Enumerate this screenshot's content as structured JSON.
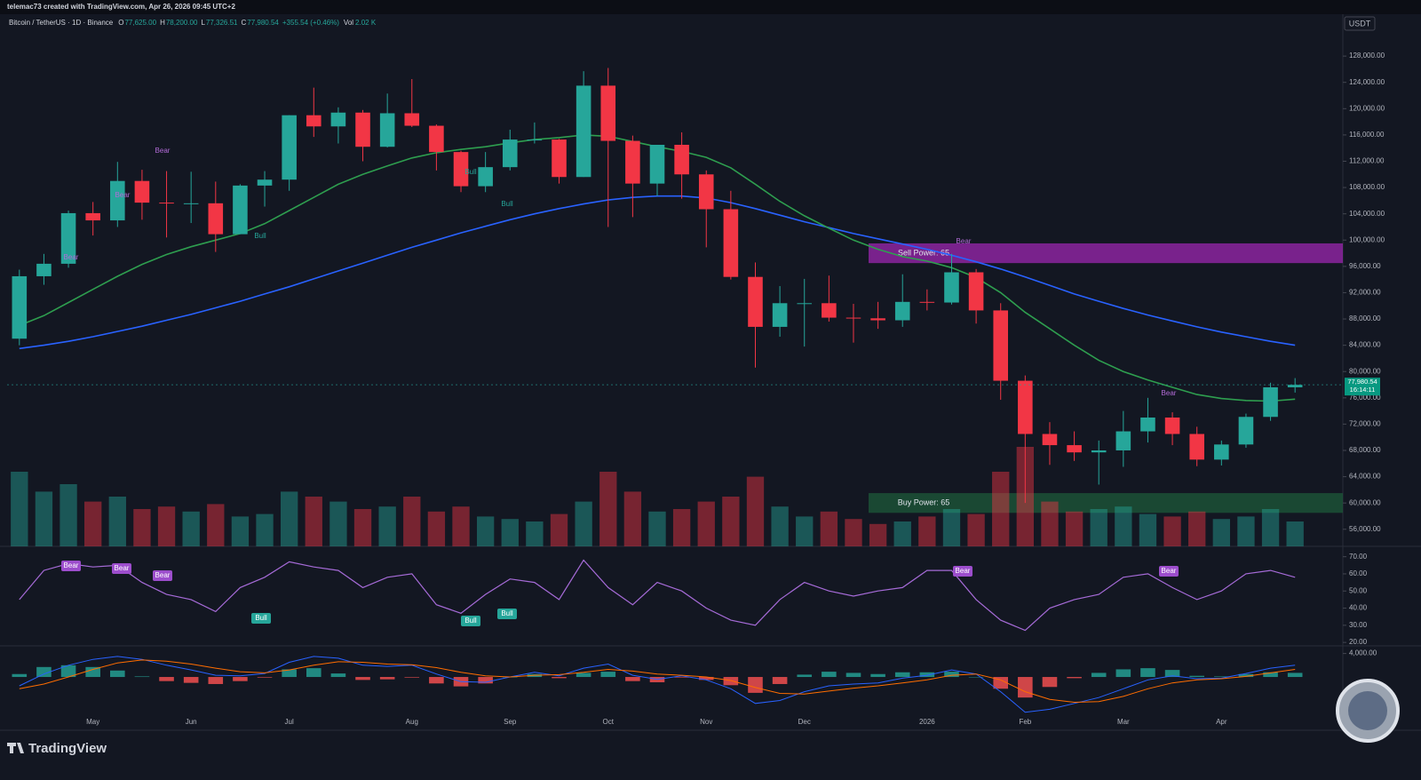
{
  "header": {
    "attribution": "telemac73 created with TradingView.com, Apr 26, 2026 09:45 UTC+2",
    "symbol": "Bitcoin / TetherUS · 1D · Binance",
    "ohlc": [
      {
        "key": "O",
        "value": "77,625.00"
      },
      {
        "key": "H",
        "value": "78,200.00"
      },
      {
        "key": "L",
        "value": "77,326.51"
      },
      {
        "key": "C",
        "value": "77,980.54"
      }
    ],
    "change": "+355.54 (+0.46%)",
    "volume_key": "Vol",
    "volume_value": "2.02 K"
  },
  "currency": "USDT",
  "brand": "TradingView",
  "chart_data": {
    "type": "candlestick",
    "categories": [
      null,
      null,
      null,
      "May",
      null,
      null,
      null,
      "Jun",
      null,
      null,
      null,
      "Jul",
      null,
      null,
      null,
      null,
      "Aug",
      null,
      null,
      null,
      "Sep",
      null,
      null,
      null,
      "Oct",
      null,
      null,
      null,
      "Nov",
      null,
      null,
      null,
      "Dec",
      null,
      null,
      null,
      null,
      "2026",
      null,
      null,
      null,
      "Feb",
      null,
      null,
      null,
      "Mar",
      null,
      null,
      null,
      "Apr",
      null,
      null,
      null
    ],
    "open": [
      85000,
      94500,
      96400,
      104100,
      103000,
      109000,
      105700,
      105600,
      105600,
      100900,
      108300,
      109200,
      119000,
      117300,
      119400,
      114200,
      119300,
      117400,
      113400,
      108200,
      111100,
      115300,
      115300,
      109600,
      123500,
      115100,
      108600,
      114500,
      110000,
      104700,
      94400,
      86800,
      90400,
      90400,
      88200,
      88100,
      87800,
      90600,
      90500,
      95100,
      89300,
      78600,
      70500,
      68800,
      67700,
      68000,
      70900,
      73000,
      70500,
      66600,
      68900,
      73100,
      77600
    ],
    "high": [
      95500,
      97900,
      104500,
      105800,
      111900,
      110700,
      110500,
      110400,
      108900,
      108500,
      110500,
      119000,
      123200,
      120200,
      119800,
      122300,
      124500,
      117600,
      113600,
      113400,
      116800,
      117900,
      115400,
      125700,
      126200,
      115900,
      114000,
      116400,
      110600,
      107500,
      96600,
      93000,
      94100,
      94600,
      90300,
      90600,
      94800,
      92500,
      97900,
      95600,
      90400,
      79400,
      72300,
      70900,
      69500,
      74000,
      76000,
      73800,
      71600,
      69500,
      73600,
      78300,
      79000
    ],
    "low": [
      84000,
      93200,
      95800,
      100700,
      102000,
      103100,
      100400,
      102600,
      98200,
      100900,
      105100,
      107500,
      115700,
      114700,
      112000,
      114100,
      117200,
      110600,
      107300,
      107300,
      110600,
      114700,
      108600,
      109600,
      102000,
      103500,
      106700,
      106300,
      98900,
      94000,
      80600,
      85300,
      83800,
      87600,
      84400,
      86500,
      86800,
      89300,
      90200,
      87300,
      75700,
      60000,
      65800,
      66400,
      62800,
      65500,
      69200,
      68800,
      65600,
      65700,
      68400,
      72500,
      76800
    ],
    "close": [
      94500,
      96400,
      104100,
      103000,
      109000,
      105700,
      105600,
      105600,
      100900,
      108300,
      109200,
      119000,
      117300,
      119400,
      114200,
      119300,
      117400,
      113400,
      108200,
      111100,
      115300,
      115300,
      109600,
      123500,
      115100,
      108600,
      114500,
      110000,
      104700,
      94400,
      86800,
      90400,
      90400,
      88200,
      88100,
      87800,
      90600,
      90500,
      95100,
      89300,
      78600,
      70500,
      68800,
      67700,
      68000,
      70900,
      73000,
      70500,
      66600,
      68900,
      73100,
      77600,
      77980.54
    ],
    "up_color": "#26a69a",
    "down_color": "#f23645",
    "ylim": [
      53400,
      134100
    ],
    "yticks": [
      {
        "value": 56000,
        "label": "56,000.00"
      },
      {
        "value": 60000,
        "label": "60,000.00"
      },
      {
        "value": 64000,
        "label": "64,000.00"
      },
      {
        "value": 68000,
        "label": "68,000.00"
      },
      {
        "value": 72000,
        "label": "72,000.00"
      },
      {
        "value": 76000,
        "label": "76,000.00"
      },
      {
        "value": 80000,
        "label": "80,000.00"
      },
      {
        "value": 84000,
        "label": "84,000.00"
      },
      {
        "value": 88000,
        "label": "88,000.00"
      },
      {
        "value": 92000,
        "label": "92,000.00"
      },
      {
        "value": 96000,
        "label": "96,000.00"
      },
      {
        "value": 100000,
        "label": "100,000.00"
      },
      {
        "value": 104000,
        "label": "104,000.00"
      },
      {
        "value": 108000,
        "label": "108,000.00"
      },
      {
        "value": 112000,
        "label": "112,000.00"
      },
      {
        "value": 116000,
        "label": "116,000.00"
      },
      {
        "value": 120000,
        "label": "120,000.00"
      },
      {
        "value": 124000,
        "label": "124,000.00"
      },
      {
        "value": 128000,
        "label": "128,000.00"
      }
    ],
    "last_price": {
      "value": 77980.54,
      "label": "77,980.54"
    },
    "countdown": "16:14:11",
    "lines": [
      {
        "color": "#2962ff",
        "values": [
          83500,
          84000,
          84600,
          85300,
          86100,
          86900,
          87800,
          88700,
          89700,
          90700,
          91800,
          92900,
          94100,
          95300,
          96500,
          97700,
          98900,
          100000,
          101100,
          102100,
          103100,
          104000,
          104800,
          105500,
          106100,
          106500,
          106700,
          106700,
          106400,
          105700,
          104800,
          103800,
          102800,
          101900,
          101000,
          100200,
          99400,
          98600,
          97700,
          96700,
          95600,
          94400,
          93100,
          91800,
          90700,
          89600,
          88600,
          87700,
          86800,
          86000,
          85300,
          84600,
          84000
        ]
      },
      {
        "color": "#2e9e4f",
        "values": [
          87000,
          88500,
          90500,
          92500,
          94500,
          96300,
          97800,
          99000,
          100000,
          101000,
          102500,
          104500,
          106500,
          108500,
          110000,
          111300,
          112500,
          113300,
          113800,
          114200,
          114800,
          115300,
          115600,
          116000,
          115800,
          115000,
          114200,
          113500,
          112600,
          111000,
          108500,
          105900,
          103700,
          101800,
          100000,
          98600,
          97500,
          96800,
          95800,
          94300,
          92000,
          89000,
          86500,
          84000,
          81700,
          80000,
          78700,
          77600,
          76500,
          75900,
          75600,
          75500,
          75800
        ]
      }
    ],
    "volume": {
      "values": [
        30,
        22,
        25,
        18,
        20,
        15,
        16,
        14,
        17,
        12,
        13,
        22,
        20,
        18,
        15,
        16,
        20,
        14,
        16,
        12,
        11,
        10,
        13,
        18,
        30,
        22,
        14,
        15,
        18,
        20,
        28,
        16,
        12,
        14,
        11,
        9,
        10,
        12,
        15,
        13,
        30,
        40,
        18,
        14,
        15,
        16,
        13,
        12,
        14,
        11,
        12,
        15,
        10
      ],
      "ylim": [
        0,
        50
      ]
    },
    "zones": [
      {
        "label": "Sell Power: 65",
        "low": 96500,
        "high": 99500,
        "color": "#9c27b0"
      },
      {
        "label": "Buy Power: 65",
        "low": 58500,
        "high": 61500,
        "color": "#1e5a3a"
      }
    ],
    "signals": [
      "Bear",
      "Bear",
      "Bear",
      "Bull",
      "Bull",
      "Bull",
      "Bear",
      "Bear"
    ],
    "rsi": {
      "color": "#a66bd8",
      "values": [
        45,
        62,
        66,
        64,
        65,
        55,
        48,
        45,
        38,
        52,
        58,
        67,
        64,
        62,
        52,
        58,
        60,
        42,
        37,
        48,
        57,
        55,
        45,
        68,
        52,
        42,
        55,
        50,
        40,
        33,
        30,
        45,
        55,
        50,
        47,
        50,
        52,
        62,
        62,
        45,
        33,
        27,
        40,
        45,
        48,
        58,
        60,
        52,
        45,
        50,
        60,
        62,
        58
      ],
      "ylim": [
        18,
        75
      ],
      "yticks": [
        {
          "value": 20,
          "label": "20.00"
        },
        {
          "value": 30,
          "label": "30.00"
        },
        {
          "value": 40,
          "label": "40.00"
        },
        {
          "value": 50,
          "label": "50.00"
        },
        {
          "value": 60,
          "label": "60.00"
        },
        {
          "value": 70,
          "label": "70.00"
        }
      ],
      "signals": [
        "Bear",
        "Bear",
        "Bear",
        "Bull",
        "Bull",
        "Bull",
        "Bear",
        "Bear"
      ]
    },
    "macd": {
      "macd_color": "#2962ff",
      "signal_color": "#ff6d00",
      "macd": [
        -1500,
        500,
        2000,
        3000,
        3500,
        3000,
        2000,
        1200,
        300,
        200,
        600,
        2500,
        3500,
        3200,
        2000,
        1800,
        2000,
        500,
        -800,
        -900,
        0,
        800,
        200,
        1500,
        2200,
        300,
        -400,
        200,
        -500,
        -2000,
        -4500,
        -4000,
        -2500,
        -1500,
        -1200,
        -1000,
        -200,
        300,
        1200,
        500,
        -2500,
        -6000,
        -5500,
        -4500,
        -3500,
        -2000,
        -500,
        200,
        -300,
        -200,
        600,
        1500,
        2000
      ],
      "signal": [
        -2000,
        -1200,
        0,
        1300,
        2400,
        2900,
        2700,
        2200,
        1500,
        900,
        700,
        1200,
        2000,
        2600,
        2500,
        2200,
        2100,
        1600,
        800,
        200,
        0,
        300,
        400,
        800,
        1300,
        1000,
        500,
        300,
        0,
        -600,
        -1800,
        -2800,
        -2900,
        -2400,
        -1900,
        -1500,
        -1000,
        -500,
        300,
        500,
        -500,
        -2500,
        -3800,
        -4300,
        -4200,
        -3300,
        -2000,
        -1000,
        -500,
        -300,
        100,
        700,
        1300
      ],
      "histogram": [
        500,
        1700,
        2000,
        1700,
        1100,
        100,
        -700,
        -1000,
        -1200,
        -700,
        -100,
        1300,
        1500,
        600,
        -500,
        -400,
        -100,
        -1100,
        -1600,
        -1100,
        0,
        500,
        -200,
        700,
        900,
        -700,
        -900,
        -100,
        -500,
        -1400,
        -2700,
        -1200,
        400,
        900,
        700,
        500,
        800,
        800,
        900,
        0,
        -2000,
        -3500,
        -1700,
        -200,
        700,
        1300,
        1500,
        1200,
        200,
        100,
        500,
        800,
        700
      ],
      "ylim": [
        -6500,
        5000
      ],
      "yticks": [
        {
          "value": 4000,
          "label": "4,000.00"
        }
      ]
    }
  }
}
